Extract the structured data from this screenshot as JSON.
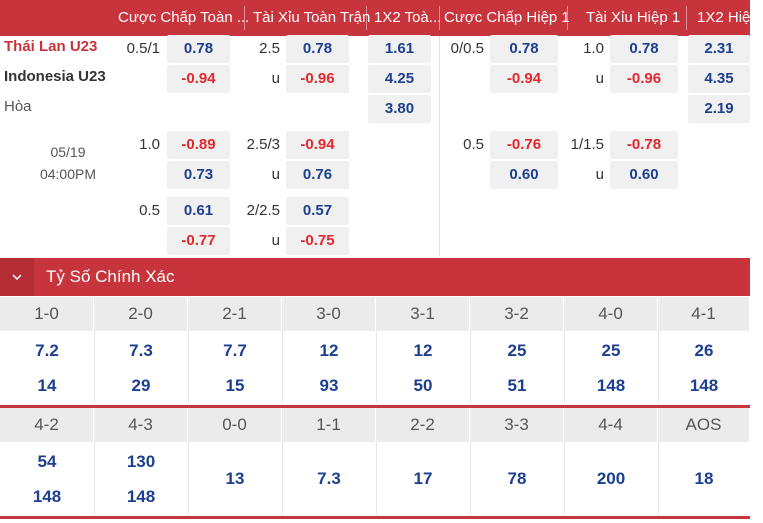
{
  "header": {
    "columns": [
      "Cược Chấp Toàn ...",
      "Tài Xỉu Toàn Trận",
      "1X2 Toà...",
      "Cược Chấp Hiệp 1",
      "Tài Xỉu Hiệp 1",
      "1X2 Hiệ..."
    ]
  },
  "match": {
    "home": "Thái Lan U23",
    "away": "Indonesia U23",
    "draw_label": "Hòa",
    "date": "05/19",
    "time": "04:00PM"
  },
  "full_time": {
    "rows": [
      {
        "hcap": "0.5/1",
        "hcap_home": "0.78",
        "hcap_away": "-0.94",
        "ou": "2.5",
        "ou_away_label": "u",
        "ou_over": "0.78",
        "ou_under": "-0.96"
      },
      {
        "hcap": "1.0",
        "hcap_home": "-0.89",
        "hcap_away": "0.73",
        "ou": "2.5/3",
        "ou_away_label": "u",
        "ou_over": "-0.94",
        "ou_under": "0.76"
      },
      {
        "hcap": "0.5",
        "hcap_home": "0.61",
        "hcap_away": "-0.77",
        "ou": "2/2.5",
        "ou_away_label": "u",
        "ou_over": "0.57",
        "ou_under": "-0.75"
      }
    ],
    "x12": {
      "home": "1.61",
      "away": "4.25",
      "draw": "3.80"
    }
  },
  "first_half": {
    "rows": [
      {
        "hcap": "0/0.5",
        "hcap_home": "0.78",
        "hcap_away": "-0.94",
        "ou": "1.0",
        "ou_away_label": "u",
        "ou_over": "0.78",
        "ou_under": "-0.96"
      },
      {
        "hcap": "0.5",
        "hcap_home": "-0.76",
        "hcap_away": "0.60",
        "ou": "1/1.5",
        "ou_away_label": "u",
        "ou_over": "-0.78",
        "ou_under": "0.60"
      }
    ],
    "x12": {
      "home": "2.31",
      "away": "4.35",
      "draw": "2.19"
    }
  },
  "correct_score": {
    "title": "Tỷ Số Chính Xác",
    "toggle_icon": "chevron-down-icon",
    "row1": [
      {
        "score": "1-0",
        "home": "7.2",
        "away": "14"
      },
      {
        "score": "2-0",
        "home": "7.3",
        "away": "29"
      },
      {
        "score": "2-1",
        "home": "7.7",
        "away": "15"
      },
      {
        "score": "3-0",
        "home": "12",
        "away": "93"
      },
      {
        "score": "3-1",
        "home": "12",
        "away": "50"
      },
      {
        "score": "3-2",
        "home": "25",
        "away": "51"
      },
      {
        "score": "4-0",
        "home": "25",
        "away": "148"
      },
      {
        "score": "4-1",
        "home": "26",
        "away": "148"
      }
    ],
    "row2_pairs": [
      {
        "score": "4-2",
        "home": "54",
        "away": "148"
      },
      {
        "score": "4-3",
        "home": "130",
        "away": "148"
      }
    ],
    "row2_singles": [
      {
        "score": "0-0",
        "value": "13"
      },
      {
        "score": "1-1",
        "value": "7.3"
      },
      {
        "score": "2-2",
        "value": "17"
      },
      {
        "score": "3-3",
        "value": "78"
      },
      {
        "score": "4-4",
        "value": "200"
      },
      {
        "score": "AOS",
        "value": "18"
      }
    ]
  },
  "colors": {
    "accent": "#c7343c",
    "positive": "#1c3f8f",
    "negative": "#e0282e",
    "cell_bg": "#f0f0f0"
  }
}
